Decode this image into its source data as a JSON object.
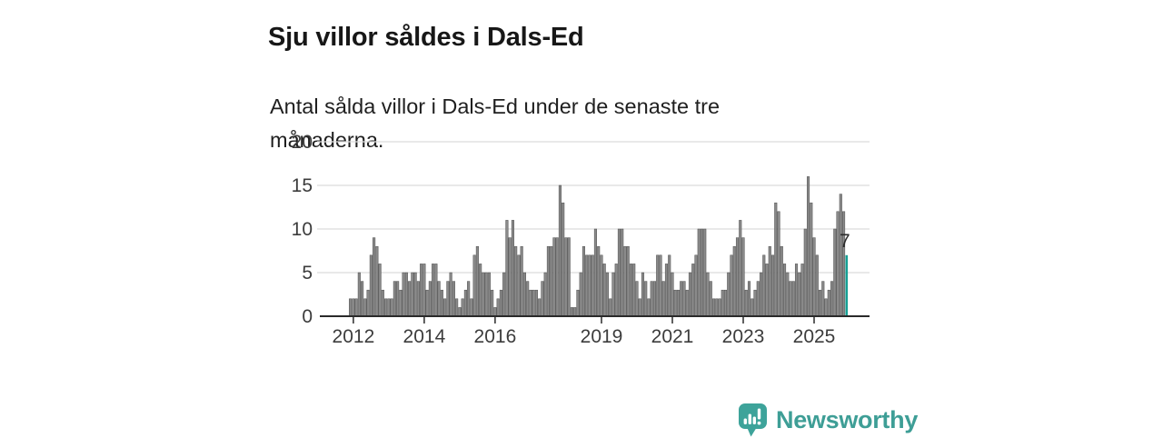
{
  "header": {
    "title": "Sju villor såldes i Dals-Ed",
    "subtitle": "Antal sålda villor i Dals-Ed under de senaste tre månaderna."
  },
  "chart_data": {
    "type": "bar",
    "title": "Sju villor såldes i Dals-Ed",
    "subtitle": "Antal sålda villor i Dals-Ed under de senaste tre månaderna.",
    "x_unit": "month",
    "x_start": "2011-12",
    "x_end": "2025-12",
    "ylim": [
      0,
      20
    ],
    "y_ticks": [
      0,
      5,
      10,
      15,
      20
    ],
    "grid": "horizontal",
    "legend": "none",
    "x_tick_labels": [
      "2012",
      "2014",
      "2016",
      "2019",
      "2021",
      "2023",
      "2025"
    ],
    "x_tick_indices": [
      1,
      25,
      49,
      85,
      109,
      133,
      157
    ],
    "bar_color": "#8a8a8a",
    "bar_edge_color": "#4e4e4e",
    "highlight_color": "#16a095",
    "highlight_index": 168,
    "highlight_label": "7",
    "axis_color": "#2a2a2a",
    "grid_color": "#dcdcdc",
    "tick_label_color": "#3c3c3c",
    "values": [
      2,
      2,
      2,
      5,
      4,
      2,
      3,
      7,
      9,
      8,
      6,
      3,
      2,
      2,
      2,
      4,
      4,
      3,
      5,
      5,
      4,
      5,
      5,
      4,
      6,
      6,
      3,
      4,
      6,
      6,
      4,
      3,
      2,
      4,
      5,
      4,
      2,
      1,
      2,
      3,
      4,
      2,
      7,
      8,
      6,
      5,
      5,
      5,
      3,
      1,
      2,
      3,
      5,
      11,
      9,
      11,
      8,
      7,
      8,
      5,
      4,
      3,
      3,
      3,
      2,
      4,
      5,
      8,
      8,
      9,
      9,
      15,
      13,
      9,
      9,
      1,
      1,
      3,
      5,
      8,
      7,
      7,
      7,
      10,
      8,
      7,
      6,
      5,
      2,
      5,
      6,
      10,
      10,
      8,
      8,
      6,
      6,
      4,
      2,
      5,
      4,
      2,
      4,
      4,
      7,
      7,
      4,
      6,
      7,
      5,
      3,
      3,
      4,
      4,
      3,
      5,
      6,
      7,
      10,
      10,
      10,
      5,
      4,
      2,
      2,
      2,
      3,
      3,
      5,
      7,
      8,
      9,
      11,
      9,
      3,
      4,
      2,
      3,
      4,
      5,
      7,
      6,
      8,
      7,
      13,
      12,
      8,
      6,
      5,
      4,
      4,
      6,
      5,
      6,
      10,
      16,
      13,
      9,
      7,
      3,
      4,
      2,
      3,
      4,
      10,
      12,
      14,
      12,
      7
    ]
  },
  "footer": {
    "brand": "Newsworthy",
    "brand_color": "#3e9e96"
  }
}
